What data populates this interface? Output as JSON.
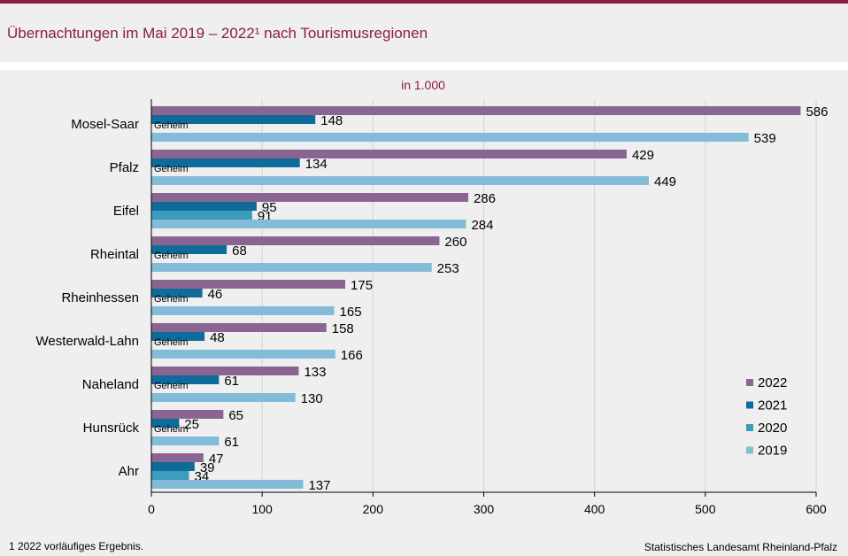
{
  "header": {
    "title": "Übernachtungen im Mai 2019 – 2022¹ nach Tourismusregionen"
  },
  "footer": {
    "footnote": "1 2022 vorläufiges  Ergebnis.",
    "source": "Statistisches Landesamt  Rheinland-Pfalz"
  },
  "chart_data": {
    "type": "bar",
    "orientation": "horizontal",
    "title": "Übernachtungen im Mai 2019 – 2022¹ nach Tourismusregionen",
    "unit_label": "in 1.000",
    "categories": [
      "Mosel-Saar",
      "Pfalz",
      "Eifel",
      "Rheintal",
      "Rheinhessen",
      "Westerwald-Lahn",
      "Naheland",
      "Hunsrück",
      "Ahr"
    ],
    "series": [
      {
        "name": "2022",
        "color": "#8b6592",
        "values": [
          586,
          429,
          286,
          260,
          175,
          158,
          133,
          65,
          47
        ]
      },
      {
        "name": "2021",
        "color": "#0f6b99",
        "values": [
          148,
          134,
          95,
          68,
          46,
          48,
          61,
          25,
          39
        ]
      },
      {
        "name": "2020",
        "color": "#3f9bbb",
        "values": [
          null,
          null,
          91,
          null,
          null,
          null,
          null,
          null,
          34
        ]
      },
      {
        "name": "2019",
        "color": "#83bcd8",
        "values": [
          539,
          449,
          284,
          253,
          165,
          166,
          130,
          61,
          137
        ]
      }
    ],
    "secret_label": "Geheim",
    "xlim": [
      0,
      600
    ],
    "xticks": [
      0,
      100,
      200,
      300,
      400,
      500,
      600
    ],
    "grid": true,
    "legend_position": "bottom-right"
  }
}
